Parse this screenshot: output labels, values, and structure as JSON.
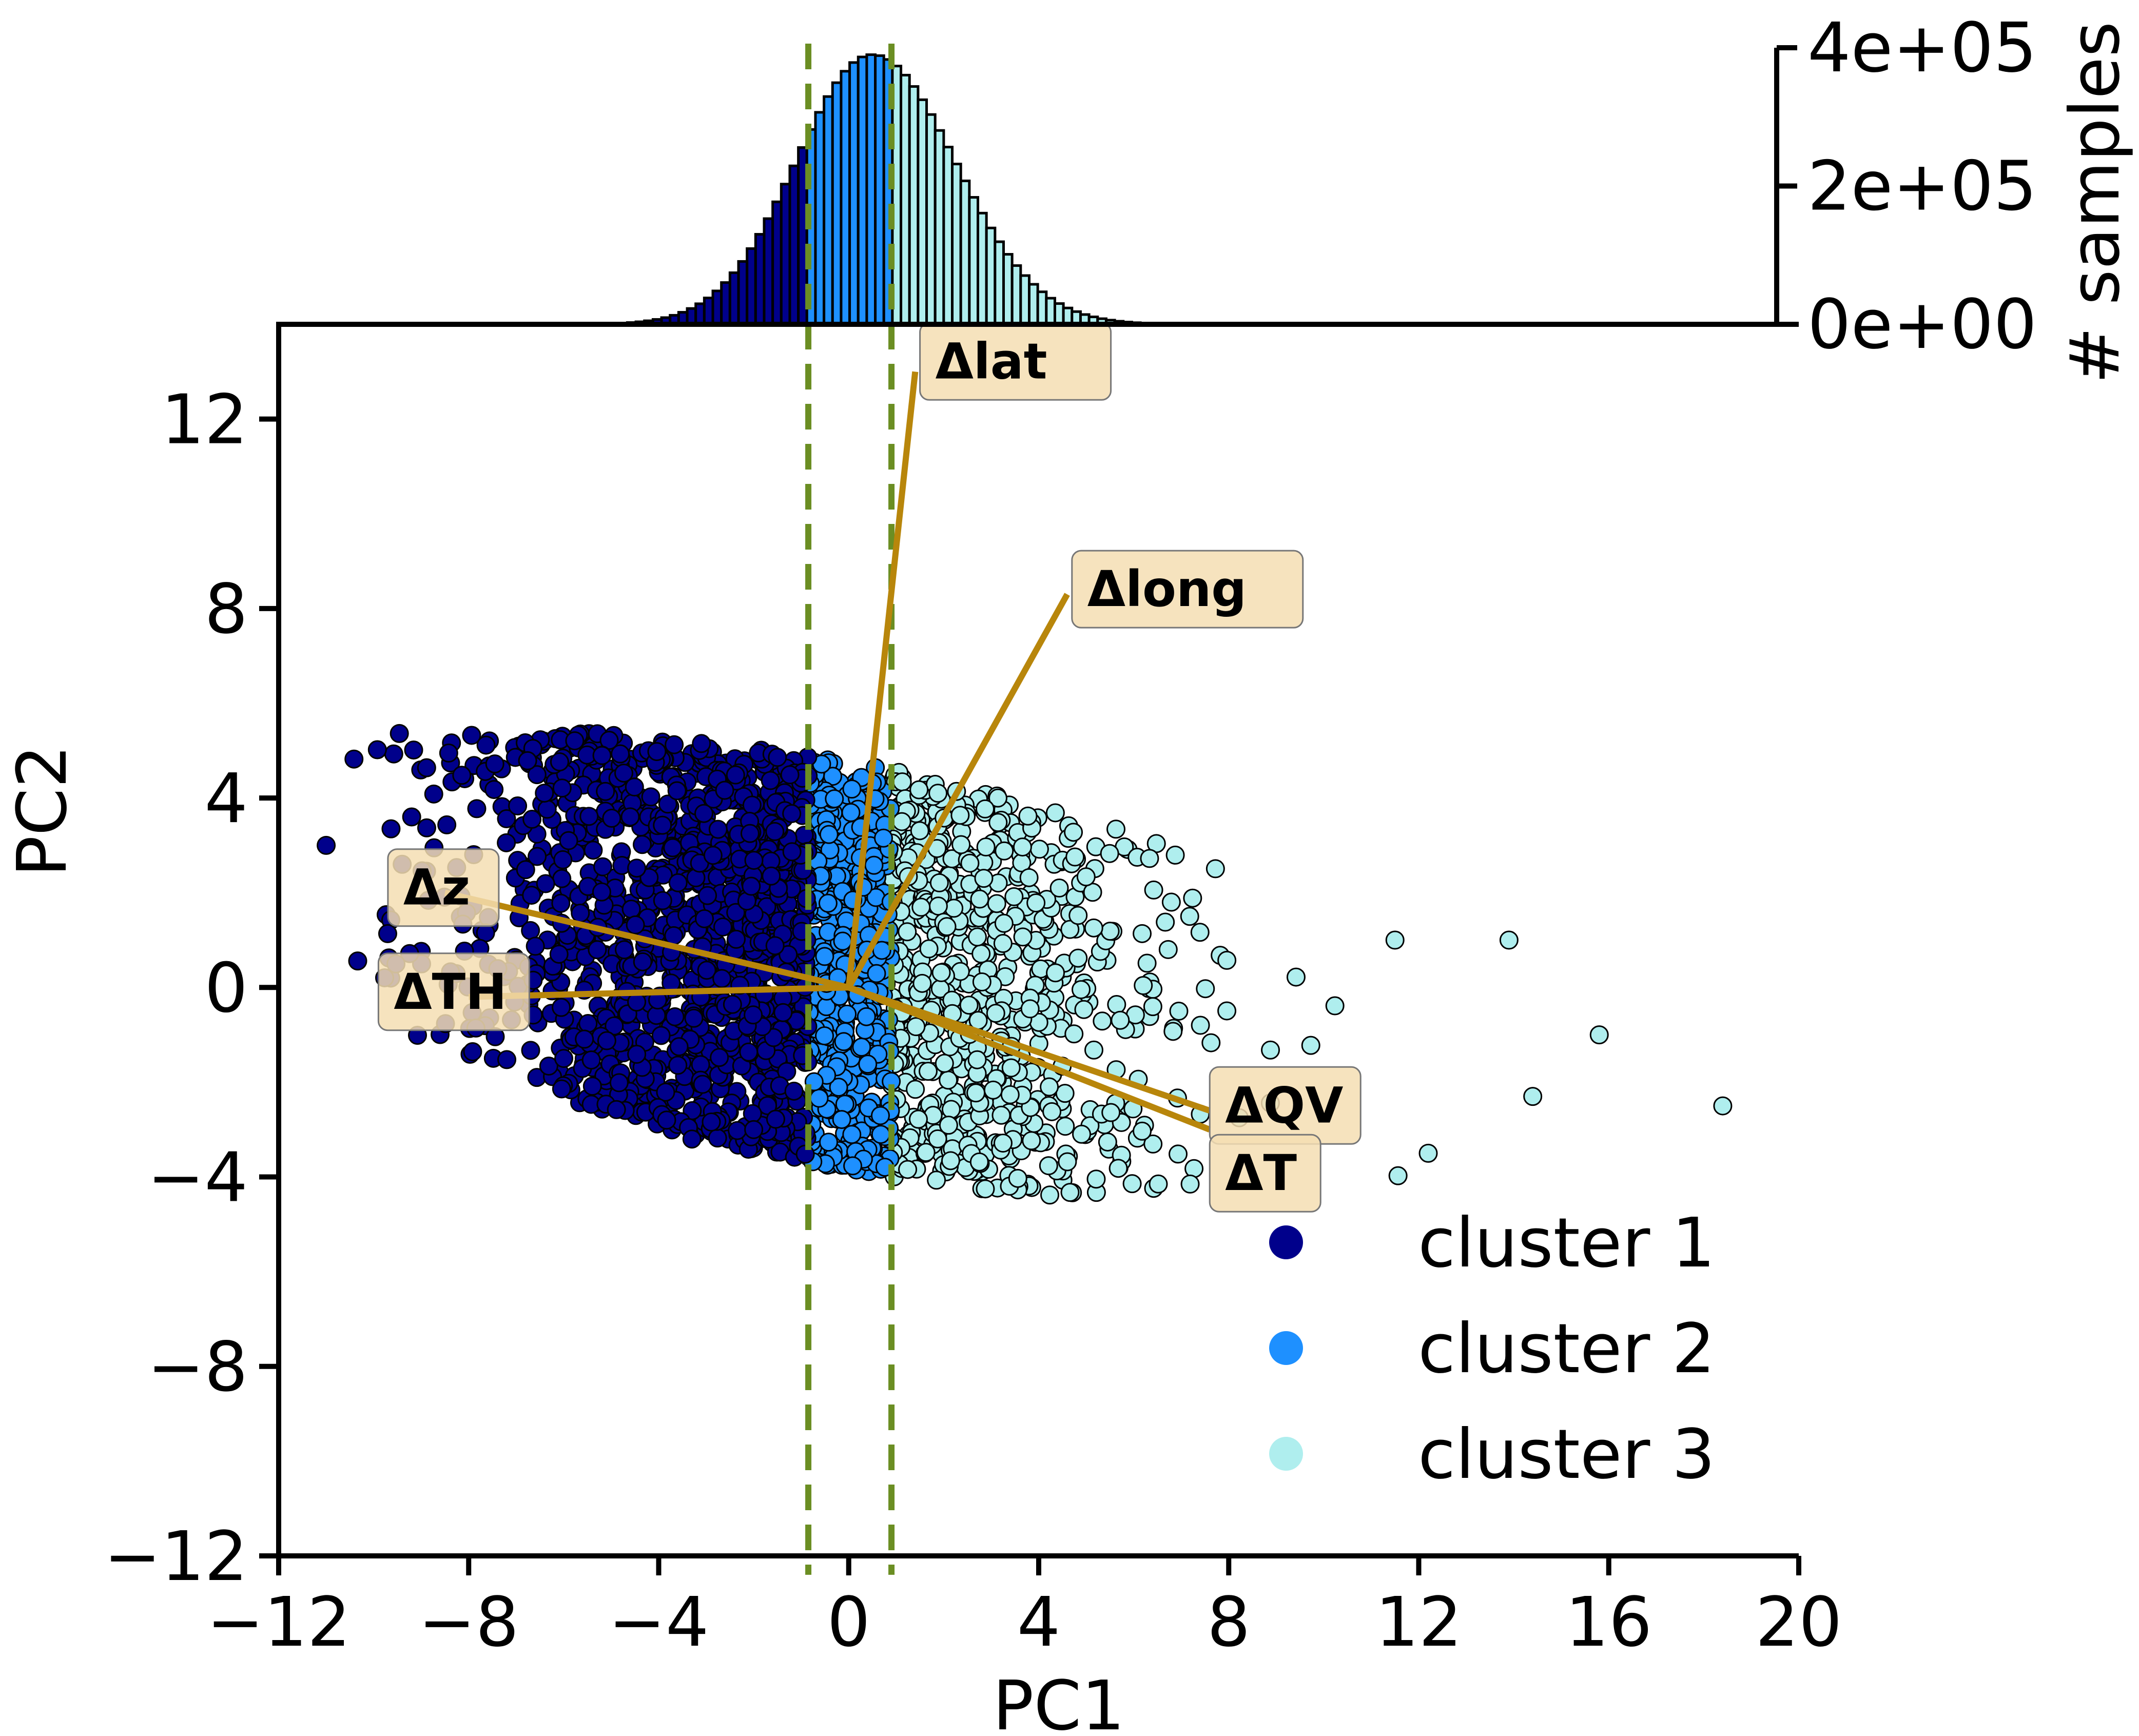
{
  "chart_data": {
    "type": "scatter",
    "title": "",
    "xlabel": "PC1",
    "ylabel": "PC2",
    "xlim": [
      -12,
      20
    ],
    "ylim": [
      -12,
      14
    ],
    "xticks": [
      -12,
      -8,
      -4,
      0,
      4,
      8,
      12,
      16,
      20
    ],
    "xtick_labels": [
      "−12",
      "−8",
      "−4",
      "0",
      "4",
      "8",
      "12",
      "16",
      "20"
    ],
    "yticks": [
      -12,
      -8,
      -4,
      0,
      4,
      8,
      12
    ],
    "ytick_labels": [
      "−12",
      "−8",
      "−4",
      "0",
      "4",
      "8",
      "12"
    ],
    "cluster_boundaries": [
      -0.85,
      0.9
    ],
    "boundary_color": "#6b8e23",
    "series": [
      {
        "name": "cluster 1",
        "color": "#00008b",
        "x_range": [
          -11,
          -0.85
        ],
        "y_range": [
          -3.2,
          5.6
        ],
        "outliers": [
          [
            -11.0,
            3.0
          ],
          [
            -9.2,
            3.6
          ],
          [
            -9.4,
            2.6
          ],
          [
            -3.3,
            -3.2
          ],
          [
            -2.0,
            -3.0
          ]
        ]
      },
      {
        "name": "cluster 2",
        "color": "#1e90ff",
        "x_range": [
          -0.85,
          0.9
        ],
        "y_range": [
          -3.4,
          4.8
        ],
        "outliers": []
      },
      {
        "name": "cluster 3",
        "color": "#afeeee",
        "x_range": [
          0.9,
          18.5
        ],
        "y_range": [
          -4.3,
          4.6
        ],
        "outliers": [
          [
            18.4,
            -2.5
          ],
          [
            14.4,
            -2.3
          ],
          [
            13.9,
            1.0
          ],
          [
            12.2,
            -3.5
          ],
          [
            11.5,
            1.0
          ],
          [
            15.8,
            -1.0
          ]
        ]
      }
    ],
    "loadings": [
      {
        "label": "Δlat",
        "x": 1.4,
        "y": 13.0
      },
      {
        "label": "Δlong",
        "x": 4.6,
        "y": 8.3
      },
      {
        "label": "Δz",
        "x": -8.5,
        "y": 2.0
      },
      {
        "label": "ΔTH",
        "x": -8.0,
        "y": -0.2
      },
      {
        "label": "ΔQV",
        "x": 7.6,
        "y": -2.6
      },
      {
        "label": "ΔT",
        "x": 7.6,
        "y": -3.0
      }
    ],
    "loading_color": "#b8860b",
    "loading_box_color": "#f5deb3",
    "histogram": {
      "ylabel": "# samples",
      "ylim": [
        0,
        400000
      ],
      "yticks": [
        0,
        200000,
        400000
      ],
      "ytick_labels": [
        "0e+00",
        "2e+05",
        "4e+05"
      ],
      "center": 0.5,
      "spread": 1.6,
      "peak": 390000,
      "bin_width": 0.18,
      "x_range": [
        -7,
        8
      ]
    },
    "legend": {
      "location": "lower-right",
      "entries": [
        {
          "label": "cluster 1",
          "color": "#00008b"
        },
        {
          "label": "cluster 2",
          "color": "#1e90ff"
        },
        {
          "label": "cluster 3",
          "color": "#afeeee"
        }
      ]
    }
  }
}
